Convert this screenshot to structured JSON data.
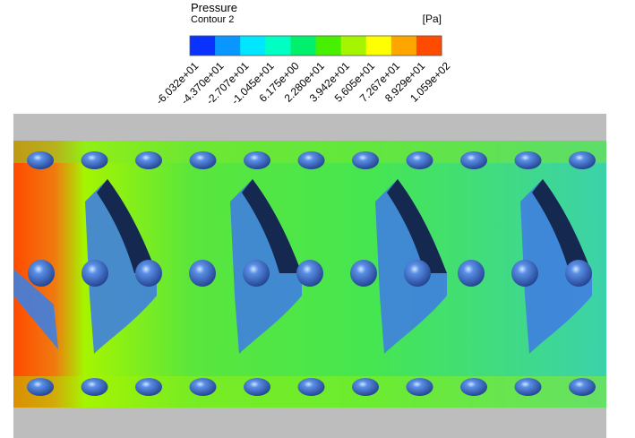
{
  "legend": {
    "title": "Pressure",
    "subtitle": "Contour 2",
    "unit": "[Pa]",
    "labels": [
      "-6.032e+01",
      "-4.370e+01",
      "-2.707e+01",
      "-1.045e+01",
      "6.175e+00",
      "2.280e+01",
      "3.942e+01",
      "5.605e+01",
      "7.267e+01",
      "8.929e+01",
      "1.059e+02"
    ],
    "colors": [
      "#0a32ff",
      "#0a96ff",
      "#00e6ff",
      "#00ffc3",
      "#00f06e",
      "#46f000",
      "#a5f500",
      "#ffff00",
      "#ffa500",
      "#ff4b00"
    ]
  }
}
